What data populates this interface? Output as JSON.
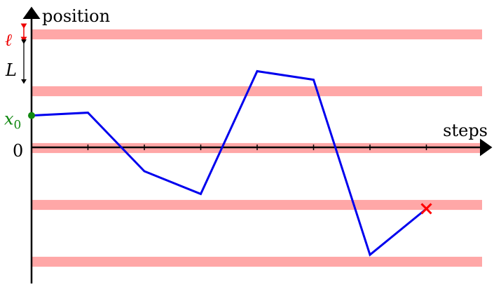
{
  "diagram": {
    "y_axis_label": "position",
    "x_axis_label": "steps",
    "zero_label": "0",
    "start_label": "x",
    "start_label_sub": "0",
    "ell_label": "ℓ",
    "L_label": "L",
    "colors": {
      "axis": "#000000",
      "band": "#ffa7a7",
      "path": "#0000ee",
      "start_point": "#118811",
      "start_label": "#118811",
      "end_marker": "#ff0000",
      "ell_label": "#ee0000",
      "ell_arrow": "#ee0000",
      "L_label": "#000000",
      "L_arrow": "#000000"
    },
    "walk": {
      "steps": [
        0,
        1,
        2,
        3,
        4,
        5,
        6,
        7
      ],
      "positions": [
        0.56,
        0.61,
        -0.42,
        -0.82,
        1.34,
        1.19,
        -1.89,
        -1.08
      ]
    },
    "bands": [
      -2.0,
      -1.0,
      0.0,
      1.0,
      2.0
    ],
    "band_width": 0.2,
    "tick_steps": [
      1,
      2,
      3,
      4,
      5,
      6,
      7
    ],
    "end_marker_symbol": "✕",
    "start_marker_symbol": "●"
  }
}
